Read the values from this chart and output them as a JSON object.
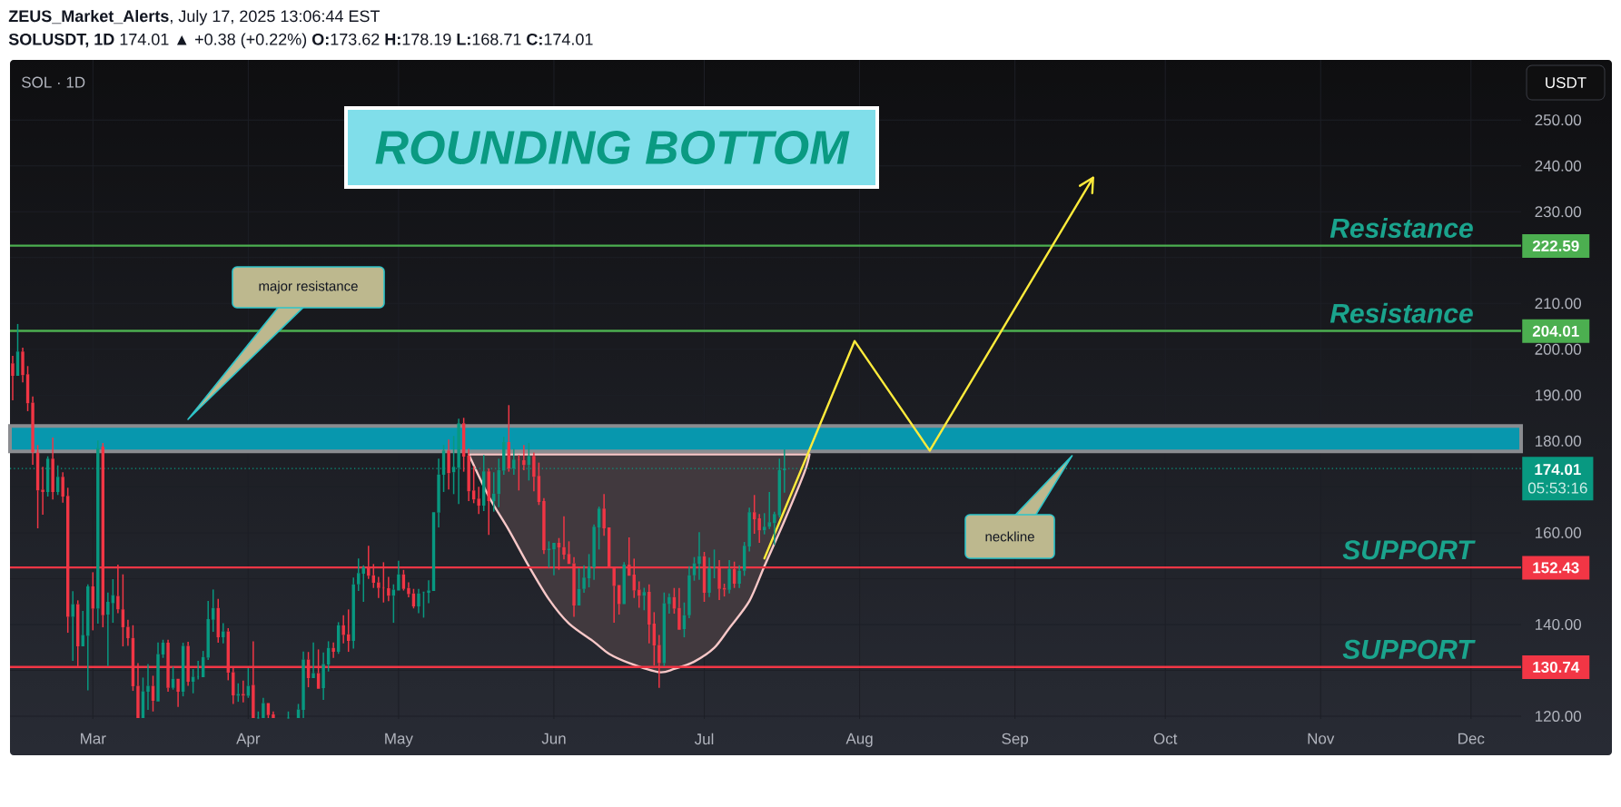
{
  "chart_data": {
    "type": "candlestick",
    "title": "ROUNDING BOTTOM",
    "subtitle": "SOL · 1D",
    "ylabel": "USDT",
    "x": [
      "2025-02-13",
      "2025-02-14",
      "2025-02-15",
      "2025-02-16",
      "2025-02-17",
      "2025-02-18",
      "2025-02-19",
      "2025-02-20",
      "2025-02-21",
      "2025-02-22",
      "2025-02-23",
      "2025-02-24",
      "2025-02-25",
      "2025-02-26",
      "2025-02-27",
      "2025-02-28",
      "2025-03-01",
      "2025-03-02",
      "2025-03-03",
      "2025-03-04",
      "2025-03-05",
      "2025-03-06",
      "2025-03-07",
      "2025-03-08",
      "2025-03-09",
      "2025-03-10",
      "2025-03-11",
      "2025-03-12",
      "2025-03-13",
      "2025-03-14",
      "2025-03-15",
      "2025-03-16",
      "2025-03-17",
      "2025-03-18",
      "2025-03-19",
      "2025-03-20",
      "2025-03-21",
      "2025-03-22",
      "2025-03-23",
      "2025-03-24",
      "2025-03-25",
      "2025-03-26",
      "2025-03-27",
      "2025-03-28",
      "2025-03-29",
      "2025-03-30",
      "2025-03-31",
      "2025-04-01",
      "2025-04-02",
      "2025-04-03",
      "2025-04-04",
      "2025-04-05",
      "2025-04-06",
      "2025-04-09",
      "2025-04-11",
      "2025-04-12",
      "2025-04-13",
      "2025-04-14",
      "2025-04-15",
      "2025-04-16",
      "2025-04-17",
      "2025-04-18",
      "2025-04-19",
      "2025-04-20",
      "2025-04-21",
      "2025-04-22",
      "2025-04-23",
      "2025-04-24",
      "2025-04-25",
      "2025-04-26",
      "2025-04-27",
      "2025-04-28",
      "2025-04-29",
      "2025-04-30",
      "2025-05-01",
      "2025-05-02",
      "2025-05-03",
      "2025-05-04",
      "2025-05-05",
      "2025-05-06",
      "2025-05-07",
      "2025-05-08",
      "2025-05-09",
      "2025-05-10",
      "2025-05-11",
      "2025-05-12",
      "2025-05-13",
      "2025-05-14",
      "2025-05-15",
      "2025-05-16",
      "2025-05-17",
      "2025-05-18",
      "2025-05-19",
      "2025-05-20",
      "2025-05-21",
      "2025-05-22",
      "2025-05-23",
      "2025-05-24",
      "2025-05-25",
      "2025-05-26",
      "2025-05-27",
      "2025-05-28",
      "2025-05-29",
      "2025-05-30",
      "2025-05-31",
      "2025-06-01",
      "2025-06-02",
      "2025-06-03",
      "2025-06-04",
      "2025-06-05",
      "2025-06-06",
      "2025-06-07",
      "2025-06-08",
      "2025-06-09",
      "2025-06-10",
      "2025-06-11",
      "2025-06-12",
      "2025-06-13",
      "2025-06-14",
      "2025-06-15",
      "2025-06-16",
      "2025-06-17",
      "2025-06-18",
      "2025-06-19",
      "2025-06-20",
      "2025-06-21",
      "2025-06-22",
      "2025-06-23",
      "2025-06-24",
      "2025-06-25",
      "2025-06-26",
      "2025-06-27",
      "2025-06-28",
      "2025-06-29",
      "2025-06-30",
      "2025-07-01",
      "2025-07-02",
      "2025-07-03",
      "2025-07-04",
      "2025-07-05",
      "2025-07-06",
      "2025-07-07",
      "2025-07-08",
      "2025-07-09",
      "2025-07-10",
      "2025-07-11",
      "2025-07-12",
      "2025-07-13",
      "2025-07-14",
      "2025-07-15",
      "2025-07-16",
      "2025-07-17"
    ],
    "ohlc": [
      [
        196.94,
        198.59,
        188.89,
        194.23
      ],
      [
        194.23,
        205.52,
        194.23,
        199.51
      ],
      [
        199.51,
        200.37,
        192.78,
        194.36
      ],
      [
        194.56,
        196.34,
        186.51,
        188.23
      ],
      [
        188.36,
        189.74,
        174.83,
        177.47
      ],
      [
        177.47,
        179.12,
        160.97,
        169.22
      ],
      [
        169.41,
        174.36,
        163.94,
        168.89
      ],
      [
        168.89,
        176.67,
        167.9,
        176.15
      ],
      [
        176.15,
        180.77,
        167.24,
        168.89
      ],
      [
        168.89,
        174.69,
        168.23,
        172.19
      ],
      [
        172.19,
        173.18,
        166.58,
        167.9
      ],
      [
        168.03,
        169.81,
        138.19,
        141.69
      ],
      [
        141.69,
        147.24,
        132.05,
        144.46
      ],
      [
        144.46,
        145.26,
        130.73,
        135.22
      ],
      [
        135.22,
        142.95,
        135.22,
        137.73
      ],
      [
        137.53,
        148.75,
        125.65,
        148.29
      ],
      [
        148.29,
        151.39,
        138.72,
        143.47
      ],
      [
        143.47,
        180.11,
        140.17,
        178.46
      ],
      [
        178.79,
        179.58,
        139.38,
        142.02
      ],
      [
        142.15,
        146.97,
        130.93,
        144.93
      ],
      [
        144.66,
        149.88,
        140.37,
        146.44
      ],
      [
        146.24,
        153.04,
        142.48,
        143.28
      ],
      [
        143.28,
        150.93,
        135.22,
        139.38
      ],
      [
        139.51,
        141.03,
        135.35,
        137.0
      ],
      [
        137.07,
        139.84,
        125.52,
        126.51
      ],
      [
        126.64,
        131.59,
        119.6,
        119.6
      ],
      [
        119.6,
        128.42,
        119.6,
        125.45
      ],
      [
        125.32,
        131.39,
        121.36,
        126.64
      ],
      [
        126.64,
        128.82,
        121.03,
        123.34
      ],
      [
        123.21,
        136.08,
        123.21,
        133.57
      ],
      [
        133.44,
        136.67,
        132.71,
        136.01
      ],
      [
        136.01,
        136.67,
        125.32,
        126.18
      ],
      [
        126.18,
        130.8,
        125.79,
        128.16
      ],
      [
        128.16,
        128.16,
        122.02,
        125.32
      ],
      [
        125.32,
        136.01,
        124.33,
        135.35
      ],
      [
        135.35,
        136.2,
        126.64,
        127.5
      ],
      [
        127.5,
        130.27,
        124.99,
        128.62
      ],
      [
        128.5,
        132.05,
        128.0,
        128.7
      ],
      [
        128.5,
        134.23,
        128.5,
        132.91
      ],
      [
        132.78,
        145.12,
        132.25,
        141.16
      ],
      [
        141.03,
        147.63,
        138.39,
        143.61
      ],
      [
        143.61,
        145.59,
        136.01,
        137.2
      ],
      [
        137.2,
        140.3,
        135.9,
        138.52
      ],
      [
        138.52,
        139.2,
        127.83,
        129.48
      ],
      [
        129.6,
        130.47,
        122.68,
        124.53
      ],
      [
        124.47,
        127.17,
        123.14,
        124.86
      ],
      [
        124.86,
        127.77,
        123.0,
        124.47
      ],
      [
        124.47,
        130.47,
        124.0,
        126.64
      ],
      [
        126.84,
        136.34,
        119.6,
        119.6
      ],
      [
        119.6,
        121.03,
        119.6,
        119.6
      ],
      [
        119.6,
        124.0,
        119.6,
        122.88
      ],
      [
        122.88,
        122.88,
        119.6,
        120.24
      ],
      [
        120.37,
        121.03,
        119.6,
        119.6
      ],
      [
        119.6,
        121.03,
        119.6,
        119.6
      ],
      [
        119.6,
        122.68,
        119.6,
        121.49
      ],
      [
        121.36,
        134.1,
        119.6,
        132.38
      ],
      [
        132.38,
        134.0,
        126.31,
        128.29
      ],
      [
        128.29,
        136.08,
        128.29,
        129.41
      ],
      [
        129.41,
        134.56,
        125.98,
        125.98
      ],
      [
        126.11,
        133.9,
        123.54,
        131.39
      ],
      [
        131.26,
        136.34,
        129.74,
        134.89
      ],
      [
        134.89,
        136.08,
        132.71,
        134.03
      ],
      [
        134.03,
        140.5,
        133.6,
        139.84
      ],
      [
        139.84,
        142.02,
        135.88,
        137.73
      ],
      [
        137.86,
        143.28,
        134.03,
        136.41
      ],
      [
        136.41,
        150.21,
        134.76,
        148.75
      ],
      [
        148.75,
        154.36,
        147.3,
        151.2
      ],
      [
        151.07,
        152.9,
        144.93,
        152.52
      ],
      [
        152.52,
        157.14,
        149.94,
        150.6
      ],
      [
        150.73,
        153.18,
        147.96,
        149.08
      ],
      [
        149.21,
        150.4,
        145.78,
        147.96
      ],
      [
        148.1,
        153.57,
        144.79,
        147.9
      ],
      [
        147.9,
        150.4,
        145.1,
        146.25
      ],
      [
        146.25,
        148.75,
        140.37,
        147.63
      ],
      [
        147.43,
        153.9,
        147.43,
        150.93
      ],
      [
        150.93,
        151.9,
        147.4,
        147.76
      ],
      [
        147.96,
        149.2,
        145.9,
        146.64
      ],
      [
        146.77,
        147.76,
        143.5,
        143.94
      ],
      [
        143.94,
        147.76,
        142.48,
        146.77
      ],
      [
        146.9,
        147.1,
        141.49,
        147.1
      ],
      [
        146.9,
        149.61,
        144.66,
        147.43
      ],
      [
        147.3,
        164.46,
        147.3,
        164.46
      ],
      [
        164.4,
        176.15,
        161.16,
        172.71
      ],
      [
        172.65,
        179.12,
        168.89,
        177.93
      ],
      [
        177.93,
        180.31,
        169.41,
        172.98
      ],
      [
        173.18,
        181.1,
        168.42,
        174.36
      ],
      [
        174.17,
        184.86,
        166.25,
        183.87
      ],
      [
        183.87,
        185.06,
        173.31,
        176.61
      ],
      [
        176.81,
        178.32,
        166.91,
        169.02
      ],
      [
        169.22,
        174.5,
        166.44,
        167.24
      ],
      [
        167.44,
        170.01,
        164.07,
        165.92
      ],
      [
        165.92,
        176.94,
        164.73,
        173.37
      ],
      [
        173.37,
        174.03,
        159.51,
        166.91
      ],
      [
        166.91,
        173.18,
        164.6,
        168.56
      ],
      [
        168.42,
        176.15,
        165.59,
        173.64
      ],
      [
        173.51,
        180.9,
        172.65,
        179.78
      ],
      [
        179.78,
        187.83,
        173.31,
        173.97
      ],
      [
        173.97,
        178.32,
        172.65,
        175.95
      ],
      [
        176.0,
        176.94,
        169.22,
        175.8
      ],
      [
        175.8,
        179.12,
        173.64,
        174.76
      ],
      [
        174.76,
        179.58,
        171.39,
        176.74
      ],
      [
        176.74,
        177.47,
        169.02,
        172.19
      ],
      [
        172.39,
        175.29,
        166.05,
        166.71
      ],
      [
        166.91,
        167.56,
        155.35,
        156.21
      ],
      [
        156.21,
        158.13,
        152.38,
        156.54
      ],
      [
        156.34,
        157.8,
        150.73,
        157.8
      ],
      [
        157.8,
        158.85,
        151.92,
        156.81
      ],
      [
        156.87,
        163.61,
        154.17,
        155.22
      ],
      [
        155.35,
        158.13,
        153.18,
        153.18
      ],
      [
        153.37,
        154.69,
        141.69,
        144.13
      ],
      [
        144.13,
        152.25,
        144.13,
        147.76
      ],
      [
        147.76,
        152.9,
        146.9,
        150.21
      ],
      [
        150.07,
        155.35,
        148.1,
        152.58
      ],
      [
        152.38,
        161.8,
        149.74,
        161.3
      ],
      [
        161.17,
        165.7,
        156.34,
        165.26
      ],
      [
        165.26,
        168.42,
        159.32,
        160.97
      ],
      [
        161.17,
        161.17,
        152.38,
        152.38
      ],
      [
        152.38,
        152.38,
        140.37,
        148.42
      ],
      [
        148.62,
        148.62,
        142.15,
        144.46
      ],
      [
        144.46,
        153.57,
        144.46,
        153.04
      ],
      [
        153.04,
        158.99,
        150.6,
        150.6
      ],
      [
        150.86,
        154.36,
        145.78,
        147.43
      ],
      [
        147.63,
        149.4,
        143.67,
        146.25
      ],
      [
        146.25,
        148.0,
        143.1,
        147.04
      ],
      [
        147.1,
        148.75,
        135.88,
        139.97
      ],
      [
        140.17,
        142.68,
        131.06,
        135.42
      ],
      [
        135.55,
        137.73,
        126.18,
        131.59
      ],
      [
        131.59,
        146.97,
        130.93,
        144.66
      ],
      [
        144.46,
        146.77,
        142.35,
        145.98
      ],
      [
        145.98,
        147.96,
        142.35,
        143.47
      ],
      [
        143.6,
        147.96,
        138.85,
        138.85
      ],
      [
        138.98,
        144.79,
        137.2,
        142.02
      ],
      [
        142.02,
        152.71,
        141.36,
        150.73
      ],
      [
        150.73,
        154.69,
        149.54,
        153.37
      ],
      [
        153.24,
        160.11,
        149.74,
        154.89
      ],
      [
        154.89,
        155.82,
        144.93,
        146.91
      ],
      [
        146.91,
        154.56,
        145.98,
        152.38
      ],
      [
        152.38,
        156.34,
        150.07,
        152.6
      ],
      [
        152.38,
        154.03,
        145.32,
        147.76
      ],
      [
        147.96,
        148.9,
        146.1,
        147.6
      ],
      [
        147.56,
        154.03,
        146.77,
        152.05
      ],
      [
        152.05,
        153.7,
        147.96,
        148.89
      ],
      [
        148.89,
        152.9,
        147.96,
        151.72
      ],
      [
        151.72,
        157.99,
        150.6,
        157.14
      ],
      [
        157.01,
        165.45,
        155.9,
        164.46
      ],
      [
        164.46,
        168.23,
        159.78,
        162.95
      ],
      [
        163.14,
        164.07,
        157.8,
        160.5
      ],
      [
        160.5,
        164.27,
        159.65,
        161.3
      ],
      [
        161.3,
        168.89,
        160.8,
        162.29
      ],
      [
        162.09,
        164.6,
        157.33,
        164.07
      ],
      [
        163.8,
        176.15,
        163.3,
        173.62
      ],
      [
        173.62,
        178.19,
        168.71,
        174.01
      ]
    ],
    "series": [
      {
        "type": "area",
        "color": "#F8C8C8",
        "x": [
          "2025-05-15",
          "2025-05-19",
          "2025-05-23",
          "2025-05-27",
          "2025-05-31",
          "2025-06-04",
          "2025-06-09",
          "2025-06-12",
          "2025-06-16",
          "2025-06-22",
          "2025-06-25",
          "2025-06-29",
          "2025-07-03",
          "2025-07-06",
          "2025-07-10",
          "2025-07-13",
          "2025-07-17",
          "2025-07-21",
          "2025-07-22"
        ],
        "values": [
          177.1,
          167.9,
          160.6,
          152.7,
          145.5,
          140.2,
          136.2,
          133.6,
          131.6,
          129.6,
          130.3,
          131.9,
          134.9,
          139.2,
          145.1,
          152.7,
          162.6,
          173.2,
          177.1
        ]
      },
      {
        "type": "line",
        "color": "#FFEB3B",
        "x": [
          "2025-07-13",
          "2025-07-31",
          "2025-08-15",
          "2025-09-16T14:00"
        ],
        "values": [
          154.4,
          201.8,
          177.9,
          237.4
        ]
      }
    ],
    "xlim": [
      "2025-02-12T11:00",
      "2025-12-11"
    ],
    "ylim": [
      119.4,
      263.1
    ],
    "xticks": [
      {
        "value": "2025-03-01",
        "label": "Mar"
      },
      {
        "value": "2025-04-01",
        "label": "Apr"
      },
      {
        "value": "2025-05-01",
        "label": "May"
      },
      {
        "value": "2025-06-01",
        "label": "Jun"
      },
      {
        "value": "2025-07-01",
        "label": "Jul"
      },
      {
        "value": "2025-08-01",
        "label": "Aug"
      },
      {
        "value": "2025-09-01",
        "label": "Sep"
      },
      {
        "value": "2025-10-01",
        "label": "Oct"
      },
      {
        "value": "2025-11-01",
        "label": "Nov"
      },
      {
        "value": "2025-12-01",
        "label": "Dec"
      }
    ],
    "yticks": [
      {
        "value": 120,
        "label": "120.00"
      },
      {
        "value": 130,
        "label": null
      },
      {
        "value": 140,
        "label": "140.00"
      },
      {
        "value": 150,
        "label": null
      },
      {
        "value": 160,
        "label": "160.00"
      },
      {
        "value": 170,
        "label": null
      },
      {
        "value": 180,
        "label": "180.00"
      },
      {
        "value": 190,
        "label": "190.00"
      },
      {
        "value": 200,
        "label": "200.00"
      },
      {
        "value": 210,
        "label": "210.00"
      },
      {
        "value": 220,
        "label": null
      },
      {
        "value": 230,
        "label": "230.00"
      },
      {
        "value": 240,
        "label": "240.00"
      },
      {
        "value": 250,
        "label": "250.00"
      }
    ],
    "grid": true,
    "ref_lines": [
      {
        "axis": "y",
        "value": 222.59,
        "label": "Resistance",
        "color": "#4CAF50"
      },
      {
        "axis": "y",
        "value": 204.01,
        "label": "Resistance",
        "color": "#4CAF50"
      },
      {
        "axis": "y",
        "value": 174.01,
        "color": "#089981",
        "line_style": "dotted"
      },
      {
        "axis": "y",
        "value": 152.43,
        "label": "SUPPORT",
        "color": "#F23645"
      },
      {
        "axis": "y",
        "value": 130.74,
        "label": "SUPPORT",
        "color": "#F23645"
      }
    ],
    "bands": [
      {
        "axis": "y",
        "from": 177.73,
        "to": 183.28,
        "color": "#0797AE"
      }
    ],
    "annotations": [
      "**ZEUS_Market_Alerts**, July 17, 2025 13:06:44 EST",
      "**SOLUSDT, 1D** 174.01 ▲ +0.38 (+0.22%) **O:**173.62 **H:**178.19 **L:**168.71 **C:**174.01",
      "major resistance",
      "neckline",
      "222.59",
      "204.01",
      "174.01",
      "152.43",
      "130.74",
      "05:53:16"
    ]
  }
}
